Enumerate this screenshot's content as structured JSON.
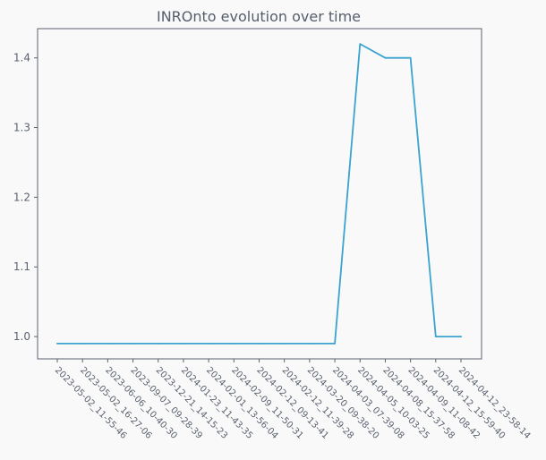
{
  "chart_data": {
    "type": "line",
    "title": "INROnto evolution over time",
    "xlabel": "",
    "ylabel": "",
    "x": [
      "2023-05-02_11-55-46",
      "2023-05-02_16-27-06",
      "2023-06-06_10-40-30",
      "2023-09-07_09-28-39",
      "2023-12-21_14-15-23",
      "2024-01-23_11-43-35",
      "2024-02-01_13-56-04",
      "2024-02-09_11-50-31",
      "2024-02-12_09-13-41",
      "2024-02-12_11-39-28",
      "2024-03-20_09-38-20",
      "2024-04-03_07-39-08",
      "2024-04-05_10-03-25",
      "2024-04-08_15-37-58",
      "2024-04-09_11-08-42",
      "2024-04-12_15-59-40",
      "2024-04-12_23-58-14"
    ],
    "series": [
      {
        "values": [
          0.99,
          0.99,
          0.99,
          0.99,
          0.99,
          0.99,
          0.99,
          0.99,
          0.99,
          0.99,
          0.99,
          0.99,
          1.42,
          1.4,
          1.4,
          1.0,
          1.0
        ]
      }
    ],
    "yticks": [
      "1.0",
      "1.1",
      "1.2",
      "1.3",
      "1.4"
    ],
    "ylim": [
      0.968,
      1.442
    ],
    "grid": false,
    "colors": {
      "line": "#3aa3cf",
      "axes": "#5b6270",
      "text": "#5b6270",
      "background": "#f9f9f9"
    }
  }
}
